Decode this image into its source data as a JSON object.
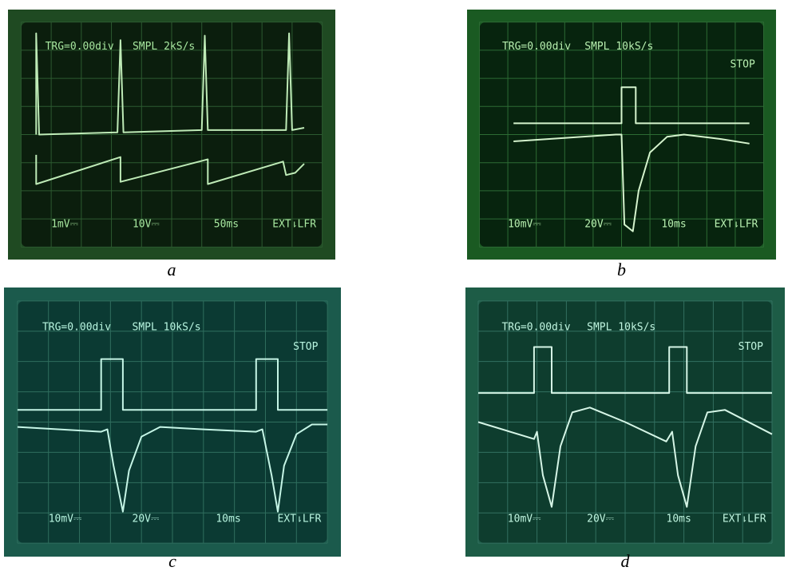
{
  "panels": [
    {
      "caption": "a",
      "screen": {
        "trigger": "TRG=0.00div",
        "sampling": "SMPL 2kS/s",
        "ch1_scale": "1mV⎓",
        "ch2_scale": "10V⎓",
        "timebase": "50ms",
        "trigger_source": "EXT⇂LFR"
      }
    },
    {
      "caption": "b",
      "screen": {
        "trigger": "TRG=0.00div",
        "sampling": "SMPL 10kS/s",
        "status": "STOP",
        "ch1_scale": "10mV⎓",
        "ch2_scale": "20V⎓",
        "timebase": "10ms",
        "trigger_source": "EXT⇂LFR"
      }
    },
    {
      "caption": "c",
      "screen": {
        "trigger": "TRG=0.00div",
        "sampling": "SMPL 10kS/s",
        "status": "STOP",
        "ch1_scale": "10mV⎓",
        "ch2_scale": "20V⎓",
        "timebase": "10ms",
        "trigger_source": "EXT⇂LFR"
      }
    },
    {
      "caption": "d",
      "screen": {
        "trigger": "TRG=0.00div",
        "sampling": "SMPL 10kS/s",
        "status": "STOP",
        "ch1_scale": "10mV⎓",
        "ch2_scale": "20V⎓",
        "timebase": "10ms",
        "trigger_source": "EXT⇂LFR"
      }
    }
  ]
}
